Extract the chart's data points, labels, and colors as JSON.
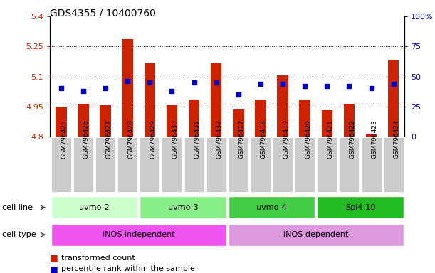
{
  "title": "GDS4355 / 10400760",
  "samples": [
    "GSM796425",
    "GSM796426",
    "GSM796427",
    "GSM796428",
    "GSM796429",
    "GSM796430",
    "GSM796431",
    "GSM796432",
    "GSM796417",
    "GSM796418",
    "GSM796419",
    "GSM796420",
    "GSM796421",
    "GSM796422",
    "GSM796423",
    "GSM796424"
  ],
  "bar_values": [
    4.95,
    4.965,
    4.955,
    5.285,
    5.17,
    4.955,
    4.985,
    5.17,
    4.935,
    4.985,
    5.105,
    4.985,
    4.93,
    4.965,
    4.81,
    5.185
  ],
  "percentile_values": [
    40,
    38,
    40,
    46,
    45,
    38,
    45,
    45,
    35,
    44,
    44,
    42,
    42,
    42,
    40,
    44
  ],
  "y_min": 4.8,
  "y_max": 5.4,
  "y_ticks": [
    4.8,
    4.95,
    5.1,
    5.25,
    5.4
  ],
  "y_tick_labels": [
    "4.8",
    "4.95",
    "5.1",
    "5.25",
    "5.4"
  ],
  "y2_ticks": [
    0,
    25,
    50,
    75,
    100
  ],
  "y2_tick_labels": [
    "0",
    "25",
    "50",
    "75",
    "100%"
  ],
  "bar_color": "#cc2200",
  "dot_color": "#0000cc",
  "cell_line_groups": [
    {
      "label": "uvmo-2",
      "start": 0,
      "end": 3,
      "color": "#ccffcc"
    },
    {
      "label": "uvmo-3",
      "start": 4,
      "end": 7,
      "color": "#88ee88"
    },
    {
      "label": "uvmo-4",
      "start": 8,
      "end": 11,
      "color": "#44cc44"
    },
    {
      "label": "Spl4-10",
      "start": 12,
      "end": 15,
      "color": "#22bb22"
    }
  ],
  "cell_type_groups": [
    {
      "label": "iNOS independent",
      "start": 0,
      "end": 7,
      "color": "#ee55ee"
    },
    {
      "label": "iNOS dependent",
      "start": 8,
      "end": 15,
      "color": "#dd99dd"
    }
  ],
  "legend_items": [
    {
      "label": "transformed count",
      "color": "#cc2200"
    },
    {
      "label": "percentile rank within the sample",
      "color": "#0000cc"
    }
  ],
  "grid_lines": [
    4.95,
    5.1,
    5.25
  ],
  "bar_base": 4.8,
  "tick_label_color_left": "#cc2200",
  "tick_label_color_right": "#0000cc",
  "xtick_bg": "#cccccc"
}
